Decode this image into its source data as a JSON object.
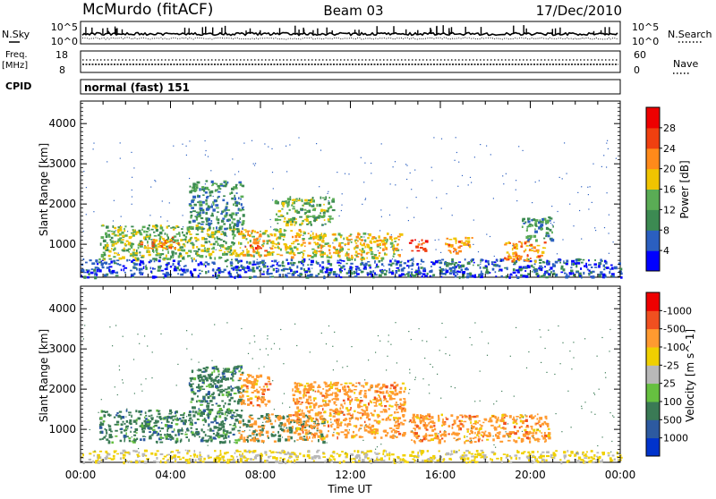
{
  "header": {
    "station": "McMurdo (fitACF)",
    "beam": "Beam 03",
    "date": "17/Dec/2010"
  },
  "top_panels": {
    "nsky_label": "N.Sky",
    "nsearch_label": "N.Search",
    "count_ticks": [
      "10^5",
      "10^0"
    ],
    "freq_label": "Freq.",
    "freq_unit": "[MHz]",
    "freq_ticks": [
      "18",
      "8"
    ],
    "nave_label": "Nave",
    "nave_ticks": [
      "60",
      "0"
    ],
    "cpid_label": "CPID",
    "cpid_value": "normal (fast) 151"
  },
  "chart_data": [
    {
      "type": "heatmap",
      "title": "",
      "xlabel": "Time UT",
      "ylabel": "Slant Range [km]",
      "colorbar_label": "Power [dB]",
      "colorbar_ticks": [
        "4",
        "8",
        "12",
        "16",
        "20",
        "24",
        "28"
      ],
      "colorbar_colors": [
        "#0000ff",
        "#2b5fc0",
        "#3c8a52",
        "#5aac55",
        "#f0c400",
        "#ff8a1a",
        "#f04010",
        "#ee0000"
      ],
      "x_ticks": [
        "00:00",
        "04:00",
        "08:00",
        "12:00",
        "16:00",
        "20:00",
        "00:00"
      ],
      "y_ticks": [
        "1000",
        "2000",
        "3000",
        "4000"
      ],
      "xlim": [
        0,
        24
      ],
      "ylim": [
        180,
        4560
      ],
      "echo_regions": [
        {
          "t_start": 0.0,
          "t_end": 24.0,
          "range_low": 200,
          "range_high": 650,
          "level": 1
        },
        {
          "t_start": 0.8,
          "t_end": 7.0,
          "range_low": 650,
          "range_high": 1500,
          "level": 3
        },
        {
          "t_start": 2.6,
          "t_end": 4.4,
          "range_low": 900,
          "range_high": 1200,
          "level": 5
        },
        {
          "t_start": 4.8,
          "t_end": 7.2,
          "range_low": 1400,
          "range_high": 2600,
          "level": 2
        },
        {
          "t_start": 7.0,
          "t_end": 10.8,
          "range_low": 700,
          "range_high": 1400,
          "level": 4
        },
        {
          "t_start": 7.2,
          "t_end": 8.2,
          "range_low": 850,
          "range_high": 1000,
          "level": 6
        },
        {
          "t_start": 8.6,
          "t_end": 11.2,
          "range_low": 1500,
          "range_high": 2200,
          "level": 3
        },
        {
          "t_start": 10.6,
          "t_end": 14.2,
          "range_low": 650,
          "range_high": 1300,
          "level": 4
        },
        {
          "t_start": 14.6,
          "t_end": 15.4,
          "range_low": 850,
          "range_high": 1150,
          "level": 6
        },
        {
          "t_start": 16.2,
          "t_end": 17.4,
          "range_low": 800,
          "range_high": 1200,
          "level": 5
        },
        {
          "t_start": 18.8,
          "t_end": 20.6,
          "range_low": 600,
          "range_high": 1100,
          "level": 5
        },
        {
          "t_start": 19.6,
          "t_end": 21.0,
          "range_low": 1100,
          "range_high": 1700,
          "level": 2
        }
      ]
    },
    {
      "type": "heatmap",
      "title": "",
      "xlabel": "Time UT",
      "ylabel": "Slant Range [km]",
      "colorbar_label": "Velocity [m s^-1]",
      "colorbar_ticks": [
        "1000",
        "500",
        "100",
        "25",
        "-25",
        "-100",
        "-500",
        "-1000"
      ],
      "colorbar_colors": [
        "#0033cc",
        "#2d5aa0",
        "#3a7a55",
        "#66c040",
        "#b8b8b8",
        "#f0d000",
        "#ff9a30",
        "#f05020",
        "#ee0000"
      ],
      "x_ticks": [
        "00:00",
        "04:00",
        "08:00",
        "12:00",
        "16:00",
        "20:00",
        "00:00"
      ],
      "y_ticks": [
        "1000",
        "2000",
        "3000",
        "4000"
      ],
      "xlim": [
        0,
        24
      ],
      "ylim": [
        180,
        4560
      ],
      "echo_regions": [
        {
          "t_start": 0.0,
          "t_end": 24.0,
          "range_low": 200,
          "range_high": 500,
          "velocity": "ground"
        },
        {
          "t_start": 0.8,
          "t_end": 7.0,
          "range_low": 700,
          "range_high": 1500,
          "velocity": "positive"
        },
        {
          "t_start": 4.8,
          "t_end": 7.2,
          "range_low": 1400,
          "range_high": 2600,
          "velocity": "positive"
        },
        {
          "t_start": 7.0,
          "t_end": 8.4,
          "range_low": 1600,
          "range_high": 2400,
          "velocity": "negative"
        },
        {
          "t_start": 7.0,
          "t_end": 10.8,
          "range_low": 700,
          "range_high": 1400,
          "velocity": "mixed"
        },
        {
          "t_start": 9.4,
          "t_end": 14.4,
          "range_low": 800,
          "range_high": 2200,
          "velocity": "negative"
        },
        {
          "t_start": 14.6,
          "t_end": 20.8,
          "range_low": 700,
          "range_high": 1400,
          "velocity": "negative"
        }
      ]
    }
  ]
}
